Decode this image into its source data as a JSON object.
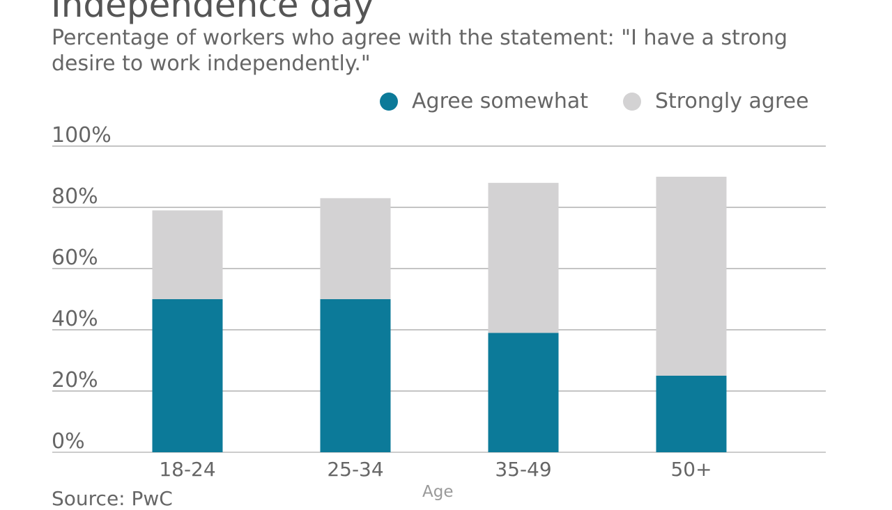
{
  "title": "Independence day",
  "subtitle": "Percentage of workers who agree with the statement: \"I have a strong desire to work independently.\"",
  "source": "Source: PwC",
  "chart_data": {
    "type": "bar",
    "stacked": true,
    "categories": [
      "18-24",
      "25-34",
      "35-49",
      "50+"
    ],
    "series": [
      {
        "name": "Agree somewhat",
        "color": "#0c7a99",
        "values": [
          50,
          50,
          39,
          25
        ]
      },
      {
        "name": "Strongly agree",
        "color": "#d3d2d3",
        "values": [
          29,
          33,
          49,
          65
        ]
      }
    ],
    "xlabel": "Age",
    "ylabel": "",
    "ylim": [
      0,
      100
    ],
    "yticks": [
      "0%",
      "20%",
      "40%",
      "60%",
      "80%",
      "100%"
    ],
    "grid": true,
    "legend": "top-right"
  }
}
